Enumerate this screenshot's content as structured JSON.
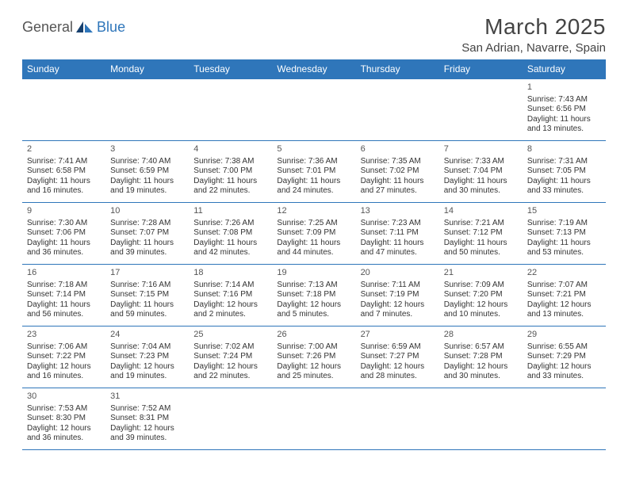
{
  "logo": {
    "part1": "General",
    "part2": "Blue"
  },
  "title": "March 2025",
  "location": "San Adrian, Navarre, Spain",
  "colors": {
    "header_bg": "#2f76ba",
    "header_text": "#ffffff",
    "border": "#2f76ba",
    "text": "#333333",
    "logo_gray": "#555555",
    "logo_blue": "#2f76ba",
    "background": "#ffffff"
  },
  "daysOfWeek": [
    "Sunday",
    "Monday",
    "Tuesday",
    "Wednesday",
    "Thursday",
    "Friday",
    "Saturday"
  ],
  "weeks": [
    [
      null,
      null,
      null,
      null,
      null,
      null,
      {
        "n": "1",
        "sunrise": "7:43 AM",
        "sunset": "6:56 PM",
        "daylight": "11 hours and 13 minutes."
      }
    ],
    [
      {
        "n": "2",
        "sunrise": "7:41 AM",
        "sunset": "6:58 PM",
        "daylight": "11 hours and 16 minutes."
      },
      {
        "n": "3",
        "sunrise": "7:40 AM",
        "sunset": "6:59 PM",
        "daylight": "11 hours and 19 minutes."
      },
      {
        "n": "4",
        "sunrise": "7:38 AM",
        "sunset": "7:00 PM",
        "daylight": "11 hours and 22 minutes."
      },
      {
        "n": "5",
        "sunrise": "7:36 AM",
        "sunset": "7:01 PM",
        "daylight": "11 hours and 24 minutes."
      },
      {
        "n": "6",
        "sunrise": "7:35 AM",
        "sunset": "7:02 PM",
        "daylight": "11 hours and 27 minutes."
      },
      {
        "n": "7",
        "sunrise": "7:33 AM",
        "sunset": "7:04 PM",
        "daylight": "11 hours and 30 minutes."
      },
      {
        "n": "8",
        "sunrise": "7:31 AM",
        "sunset": "7:05 PM",
        "daylight": "11 hours and 33 minutes."
      }
    ],
    [
      {
        "n": "9",
        "sunrise": "7:30 AM",
        "sunset": "7:06 PM",
        "daylight": "11 hours and 36 minutes."
      },
      {
        "n": "10",
        "sunrise": "7:28 AM",
        "sunset": "7:07 PM",
        "daylight": "11 hours and 39 minutes."
      },
      {
        "n": "11",
        "sunrise": "7:26 AM",
        "sunset": "7:08 PM",
        "daylight": "11 hours and 42 minutes."
      },
      {
        "n": "12",
        "sunrise": "7:25 AM",
        "sunset": "7:09 PM",
        "daylight": "11 hours and 44 minutes."
      },
      {
        "n": "13",
        "sunrise": "7:23 AM",
        "sunset": "7:11 PM",
        "daylight": "11 hours and 47 minutes."
      },
      {
        "n": "14",
        "sunrise": "7:21 AM",
        "sunset": "7:12 PM",
        "daylight": "11 hours and 50 minutes."
      },
      {
        "n": "15",
        "sunrise": "7:19 AM",
        "sunset": "7:13 PM",
        "daylight": "11 hours and 53 minutes."
      }
    ],
    [
      {
        "n": "16",
        "sunrise": "7:18 AM",
        "sunset": "7:14 PM",
        "daylight": "11 hours and 56 minutes."
      },
      {
        "n": "17",
        "sunrise": "7:16 AM",
        "sunset": "7:15 PM",
        "daylight": "11 hours and 59 minutes."
      },
      {
        "n": "18",
        "sunrise": "7:14 AM",
        "sunset": "7:16 PM",
        "daylight": "12 hours and 2 minutes."
      },
      {
        "n": "19",
        "sunrise": "7:13 AM",
        "sunset": "7:18 PM",
        "daylight": "12 hours and 5 minutes."
      },
      {
        "n": "20",
        "sunrise": "7:11 AM",
        "sunset": "7:19 PM",
        "daylight": "12 hours and 7 minutes."
      },
      {
        "n": "21",
        "sunrise": "7:09 AM",
        "sunset": "7:20 PM",
        "daylight": "12 hours and 10 minutes."
      },
      {
        "n": "22",
        "sunrise": "7:07 AM",
        "sunset": "7:21 PM",
        "daylight": "12 hours and 13 minutes."
      }
    ],
    [
      {
        "n": "23",
        "sunrise": "7:06 AM",
        "sunset": "7:22 PM",
        "daylight": "12 hours and 16 minutes."
      },
      {
        "n": "24",
        "sunrise": "7:04 AM",
        "sunset": "7:23 PM",
        "daylight": "12 hours and 19 minutes."
      },
      {
        "n": "25",
        "sunrise": "7:02 AM",
        "sunset": "7:24 PM",
        "daylight": "12 hours and 22 minutes."
      },
      {
        "n": "26",
        "sunrise": "7:00 AM",
        "sunset": "7:26 PM",
        "daylight": "12 hours and 25 minutes."
      },
      {
        "n": "27",
        "sunrise": "6:59 AM",
        "sunset": "7:27 PM",
        "daylight": "12 hours and 28 minutes."
      },
      {
        "n": "28",
        "sunrise": "6:57 AM",
        "sunset": "7:28 PM",
        "daylight": "12 hours and 30 minutes."
      },
      {
        "n": "29",
        "sunrise": "6:55 AM",
        "sunset": "7:29 PM",
        "daylight": "12 hours and 33 minutes."
      }
    ],
    [
      {
        "n": "30",
        "sunrise": "7:53 AM",
        "sunset": "8:30 PM",
        "daylight": "12 hours and 36 minutes."
      },
      {
        "n": "31",
        "sunrise": "7:52 AM",
        "sunset": "8:31 PM",
        "daylight": "12 hours and 39 minutes."
      },
      null,
      null,
      null,
      null,
      null
    ]
  ],
  "labels": {
    "sunrise": "Sunrise:",
    "sunset": "Sunset:",
    "daylight": "Daylight:"
  }
}
